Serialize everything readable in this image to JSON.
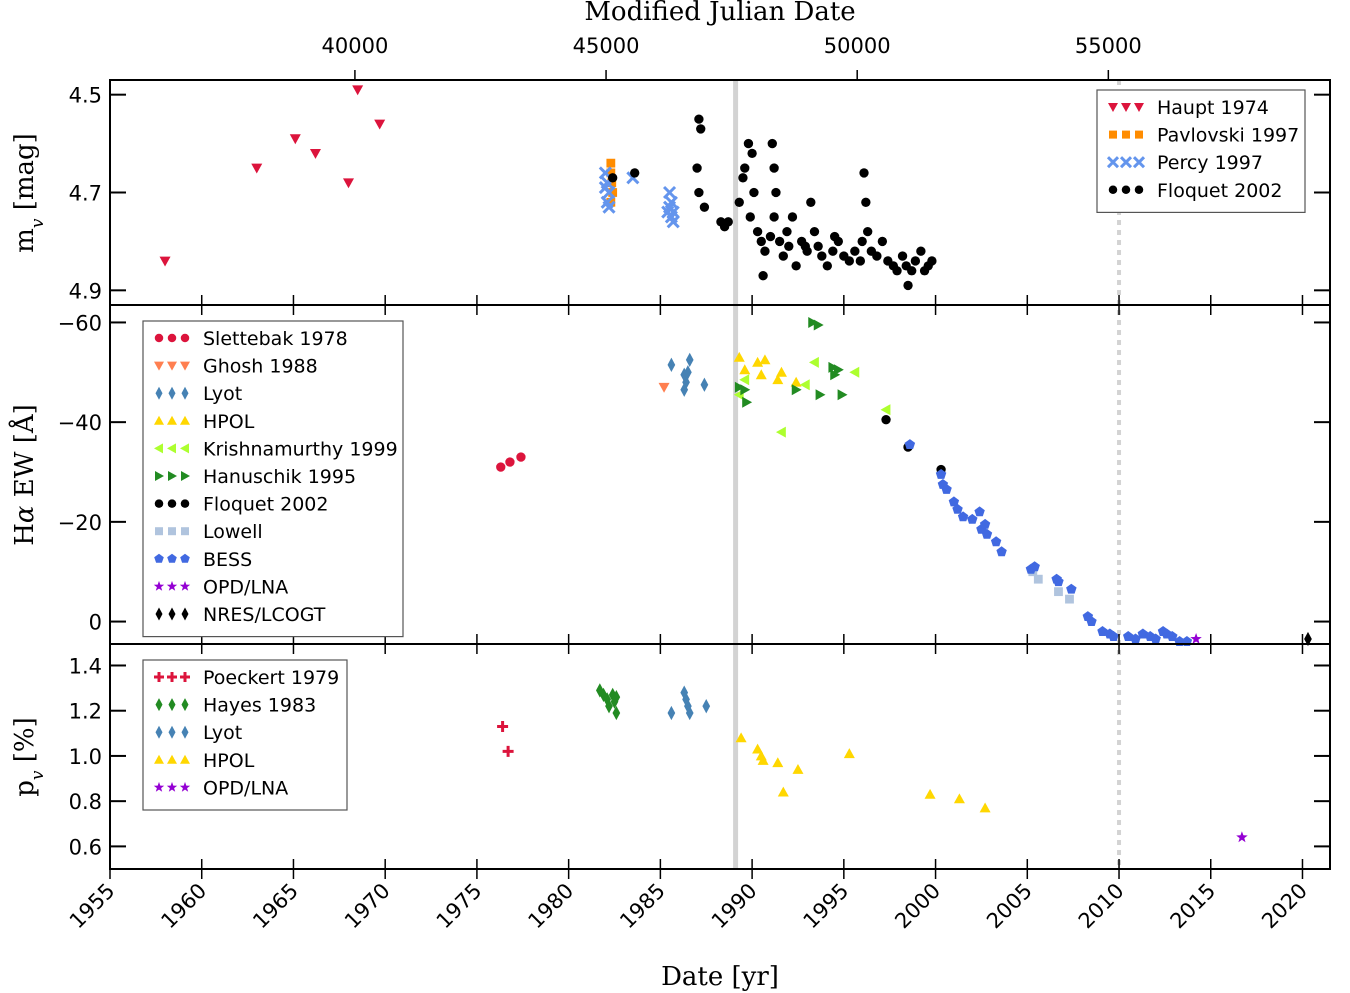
{
  "figure": {
    "top_axis_label": "Modified Julian Date",
    "bottom_axis_label": "Date [yr]"
  },
  "chart_data": [
    {
      "type": "scatter",
      "panel": "magnitude",
      "ylabel": "m_v [mag]",
      "ylim": [
        4.93,
        4.47
      ],
      "yticks": [
        "4.5",
        "4.7",
        "4.9"
      ],
      "ytick_values": [
        4.5,
        4.7,
        4.9
      ],
      "xlim": [
        1955,
        2021.5
      ],
      "legend": "top-right",
      "series": [
        {
          "name": "Haupt 1974",
          "marker": "tri-down",
          "color": "#dc143c",
          "points": [
            [
              1958.0,
              4.84
            ],
            [
              1963.0,
              4.65
            ],
            [
              1965.1,
              4.59
            ],
            [
              1966.2,
              4.62
            ],
            [
              1968.0,
              4.68
            ],
            [
              1968.5,
              4.49
            ],
            [
              1969.7,
              4.56
            ]
          ]
        },
        {
          "name": "Pavlovski 1997",
          "marker": "square",
          "color": "#ff8c00",
          "points": [
            [
              1982.3,
              4.64
            ],
            [
              1982.3,
              4.66
            ],
            [
              1982.35,
              4.68
            ],
            [
              1982.4,
              4.7
            ],
            [
              1982.3,
              4.72
            ]
          ]
        },
        {
          "name": "Percy 1997",
          "marker": "x",
          "color": "#6495ed",
          "points": [
            [
              1982.0,
              4.66
            ],
            [
              1982.1,
              4.68
            ],
            [
              1982.2,
              4.7
            ],
            [
              1982.1,
              4.72
            ],
            [
              1982.2,
              4.73
            ],
            [
              1982.0,
              4.69
            ],
            [
              1983.5,
              4.67
            ],
            [
              1985.5,
              4.7
            ],
            [
              1985.5,
              4.73
            ],
            [
              1985.6,
              4.75
            ],
            [
              1985.7,
              4.76
            ],
            [
              1985.4,
              4.74
            ],
            [
              1985.6,
              4.72
            ],
            [
              1985.7,
              4.74
            ]
          ]
        },
        {
          "name": "Floquet 2002",
          "marker": "circle",
          "color": "#000000",
          "points": [
            [
              1982.4,
              4.67
            ],
            [
              1983.6,
              4.66
            ],
            [
              1987.1,
              4.55
            ],
            [
              1987.2,
              4.57
            ],
            [
              1987.0,
              4.65
            ],
            [
              1987.1,
              4.7
            ],
            [
              1987.4,
              4.73
            ],
            [
              1988.3,
              4.76
            ],
            [
              1988.5,
              4.77
            ],
            [
              1988.7,
              4.76
            ],
            [
              1989.3,
              4.72
            ],
            [
              1989.5,
              4.67
            ],
            [
              1989.6,
              4.65
            ],
            [
              1989.8,
              4.6
            ],
            [
              1990.0,
              4.62
            ],
            [
              1989.9,
              4.75
            ],
            [
              1990.1,
              4.7
            ],
            [
              1990.3,
              4.78
            ],
            [
              1990.5,
              4.8
            ],
            [
              1990.7,
              4.82
            ],
            [
              1990.6,
              4.87
            ],
            [
              1991.0,
              4.79
            ],
            [
              1991.1,
              4.6
            ],
            [
              1991.2,
              4.65
            ],
            [
              1991.3,
              4.7
            ],
            [
              1991.2,
              4.75
            ],
            [
              1991.5,
              4.8
            ],
            [
              1991.7,
              4.83
            ],
            [
              1992.0,
              4.81
            ],
            [
              1992.2,
              4.75
            ],
            [
              1992.4,
              4.85
            ],
            [
              1992.7,
              4.8
            ],
            [
              1993.0,
              4.82
            ],
            [
              1993.2,
              4.72
            ],
            [
              1993.4,
              4.78
            ],
            [
              1993.6,
              4.81
            ],
            [
              1993.8,
              4.83
            ],
            [
              1994.1,
              4.85
            ],
            [
              1994.4,
              4.82
            ],
            [
              1994.7,
              4.8
            ],
            [
              1995.0,
              4.83
            ],
            [
              1995.3,
              4.84
            ],
            [
              1995.6,
              4.82
            ],
            [
              1995.9,
              4.84
            ],
            [
              1996.1,
              4.66
            ],
            [
              1996.2,
              4.72
            ],
            [
              1996.3,
              4.78
            ],
            [
              1996.5,
              4.82
            ],
            [
              1996.8,
              4.83
            ],
            [
              1997.1,
              4.8
            ],
            [
              1997.4,
              4.84
            ],
            [
              1997.7,
              4.85
            ],
            [
              1997.9,
              4.86
            ],
            [
              1998.2,
              4.83
            ],
            [
              1998.4,
              4.85
            ],
            [
              1998.5,
              4.89
            ],
            [
              1998.7,
              4.86
            ],
            [
              1998.9,
              4.84
            ],
            [
              1999.2,
              4.82
            ],
            [
              1999.4,
              4.86
            ],
            [
              1999.6,
              4.85
            ],
            [
              1999.8,
              4.84
            ],
            [
              1996.0,
              4.8
            ],
            [
              1994.5,
              4.79
            ],
            [
              1992.9,
              4.81
            ],
            [
              1991.9,
              4.78
            ]
          ]
        }
      ]
    },
    {
      "type": "scatter",
      "panel": "halpha",
      "ylabel": "Hα EW [Å]",
      "ylim": [
        4.5,
        -63.5
      ],
      "yticks": [
        "−60",
        "−40",
        "−20",
        "0"
      ],
      "ytick_values": [
        -60,
        -40,
        -20,
        0
      ],
      "xlim": [
        1955,
        2021.5
      ],
      "legend": "top-left",
      "series": [
        {
          "name": "Slettebak 1978",
          "marker": "circle",
          "color": "#dc143c",
          "points": [
            [
              1976.3,
              -31.0
            ],
            [
              1976.8,
              -32.0
            ],
            [
              1977.4,
              -33.0
            ]
          ]
        },
        {
          "name": "Ghosh 1988",
          "marker": "tri-down",
          "color": "#ff7f50",
          "points": [
            [
              1985.2,
              -47.0
            ]
          ]
        },
        {
          "name": "Lyot",
          "marker": "diamond",
          "color": "#4682b4",
          "points": [
            [
              1985.6,
              -51.5
            ],
            [
              1986.3,
              -46.5
            ],
            [
              1986.4,
              -48.0
            ],
            [
              1986.5,
              -50.0
            ],
            [
              1986.6,
              -52.5
            ],
            [
              1986.3,
              -49.5
            ],
            [
              1987.4,
              -47.5
            ]
          ]
        },
        {
          "name": "HPOL",
          "marker": "triangle",
          "color": "#ffd700",
          "points": [
            [
              1989.3,
              -53.0
            ],
            [
              1989.6,
              -50.5
            ],
            [
              1990.3,
              -52.0
            ],
            [
              1990.5,
              -49.5
            ],
            [
              1990.7,
              -52.5
            ],
            [
              1991.4,
              -48.5
            ],
            [
              1991.6,
              -50.0
            ],
            [
              1992.4,
              -48.0
            ]
          ]
        },
        {
          "name": "Krishnamurthy 1999",
          "marker": "tri-left",
          "color": "#adff2f",
          "points": [
            [
              1989.3,
              -45.5
            ],
            [
              1989.6,
              -48.5
            ],
            [
              1991.6,
              -38.0
            ],
            [
              1992.9,
              -47.5
            ],
            [
              1993.4,
              -52.0
            ],
            [
              1995.6,
              -50.0
            ],
            [
              1997.3,
              -42.5
            ]
          ]
        },
        {
          "name": "Hanuschik 1995",
          "marker": "tri-right",
          "color": "#228b22",
          "points": [
            [
              1989.3,
              -47.0
            ],
            [
              1989.6,
              -46.5
            ],
            [
              1989.7,
              -44.0
            ],
            [
              1992.4,
              -46.5
            ],
            [
              1993.3,
              -60.0
            ],
            [
              1993.6,
              -59.5
            ],
            [
              1993.7,
              -45.5
            ],
            [
              1994.4,
              -51.0
            ],
            [
              1994.5,
              -49.5
            ],
            [
              1994.7,
              -50.5
            ],
            [
              1994.9,
              -45.5
            ]
          ]
        },
        {
          "name": "Floquet 2002",
          "marker": "circle",
          "color": "#000000",
          "points": [
            [
              1997.3,
              -40.5
            ],
            [
              1998.5,
              -35.0
            ],
            [
              2000.3,
              -30.5
            ]
          ]
        },
        {
          "name": "Lowell",
          "marker": "square",
          "color": "#b0c4de",
          "points": [
            [
              2005.3,
              -10.0
            ],
            [
              2005.6,
              -8.5
            ],
            [
              2006.7,
              -6.0
            ],
            [
              2007.3,
              -4.5
            ]
          ]
        },
        {
          "name": "BESS",
          "marker": "pentagon",
          "color": "#4169e1",
          "points": [
            [
              1998.6,
              -35.5
            ],
            [
              2000.3,
              -29.5
            ],
            [
              2000.4,
              -27.5
            ],
            [
              2000.6,
              -26.5
            ],
            [
              2001.0,
              -24.0
            ],
            [
              2001.2,
              -22.5
            ],
            [
              2001.5,
              -21.0
            ],
            [
              2002.0,
              -20.5
            ],
            [
              2002.4,
              -22.0
            ],
            [
              2002.5,
              -18.5
            ],
            [
              2002.7,
              -19.5
            ],
            [
              2002.8,
              -17.5
            ],
            [
              2003.3,
              -16.0
            ],
            [
              2003.6,
              -14.0
            ],
            [
              2005.2,
              -10.5
            ],
            [
              2005.4,
              -11.0
            ],
            [
              2006.6,
              -8.5
            ],
            [
              2006.7,
              -8.0
            ],
            [
              2007.4,
              -6.5
            ],
            [
              2008.3,
              -1.0
            ],
            [
              2008.5,
              0.0
            ],
            [
              2009.1,
              2.0
            ],
            [
              2009.5,
              2.5
            ],
            [
              2009.7,
              3.0
            ],
            [
              2010.5,
              3.0
            ],
            [
              2010.9,
              3.5
            ],
            [
              2011.3,
              2.5
            ],
            [
              2011.7,
              3.0
            ],
            [
              2012.0,
              3.5
            ],
            [
              2012.4,
              2.0
            ],
            [
              2012.6,
              2.5
            ],
            [
              2012.9,
              3.0
            ],
            [
              2013.3,
              4.0
            ],
            [
              2013.7,
              4.0
            ]
          ]
        },
        {
          "name": "OPD/LNA",
          "marker": "star",
          "color": "#9400d3",
          "points": [
            [
              2014.2,
              3.5
            ]
          ]
        },
        {
          "name": "NRES/LCOGT",
          "marker": "diamond",
          "color": "#000000",
          "points": [
            [
              2020.3,
              3.5
            ]
          ]
        }
      ]
    },
    {
      "type": "scatter",
      "panel": "polarization",
      "ylabel": "p_v [%]",
      "ylim": [
        0.5,
        1.495
      ],
      "yticks": [
        "0.6",
        "0.8",
        "1.0",
        "1.2",
        "1.4"
      ],
      "ytick_values": [
        0.6,
        0.8,
        1.0,
        1.2,
        1.4
      ],
      "xlim": [
        1955,
        2021.5
      ],
      "legend": "top-left",
      "series": [
        {
          "name": "Poeckert 1979",
          "marker": "plus",
          "color": "#dc143c",
          "points": [
            [
              1976.4,
              1.13
            ],
            [
              1976.7,
              1.02
            ]
          ]
        },
        {
          "name": "Hayes 1983",
          "marker": "diamond",
          "color": "#228b22",
          "points": [
            [
              1981.7,
              1.29
            ],
            [
              1981.9,
              1.27
            ],
            [
              1982.1,
              1.25
            ],
            [
              1982.2,
              1.22
            ],
            [
              1982.4,
              1.27
            ],
            [
              1982.5,
              1.24
            ],
            [
              1982.6,
              1.26
            ],
            [
              1982.6,
              1.19
            ]
          ]
        },
        {
          "name": "Lyot",
          "marker": "diamond",
          "color": "#4682b4",
          "points": [
            [
              1985.6,
              1.19
            ],
            [
              1986.3,
              1.28
            ],
            [
              1986.4,
              1.25
            ],
            [
              1986.5,
              1.22
            ],
            [
              1986.6,
              1.19
            ],
            [
              1987.5,
              1.22
            ]
          ]
        },
        {
          "name": "HPOL",
          "marker": "triangle",
          "color": "#ffd700",
          "points": [
            [
              1989.4,
              1.08
            ],
            [
              1990.3,
              1.03
            ],
            [
              1990.5,
              1.0
            ],
            [
              1990.6,
              0.98
            ],
            [
              1991.4,
              0.97
            ],
            [
              1991.7,
              0.84
            ],
            [
              1992.5,
              0.94
            ],
            [
              1995.3,
              1.01
            ],
            [
              1999.7,
              0.83
            ],
            [
              2001.3,
              0.81
            ],
            [
              2002.7,
              0.77
            ]
          ]
        },
        {
          "name": "OPD/LNA",
          "marker": "star",
          "color": "#9400d3",
          "points": [
            [
              2016.7,
              0.64
            ]
          ]
        }
      ]
    }
  ],
  "x_axis": {
    "year_ticks": [
      "1955",
      "1960",
      "1965",
      "1970",
      "1975",
      "1980",
      "1985",
      "1990",
      "1995",
      "2000",
      "2005",
      "2010",
      "2015",
      "2020"
    ],
    "year_tick_values": [
      1955,
      1960,
      1965,
      1970,
      1975,
      1980,
      1985,
      1990,
      1995,
      2000,
      2005,
      2010,
      2015,
      2020
    ],
    "mjd_ticks": [
      "40000",
      "45000",
      "50000",
      "55000"
    ],
    "mjd_tick_values": [
      40000,
      45000,
      50000,
      55000
    ],
    "reference_lines": [
      {
        "year": 1989.1,
        "style": "solid",
        "color": "#d3d3d3"
      },
      {
        "year": 2010.0,
        "style": "dotted",
        "color": "#d3d3d3"
      }
    ]
  }
}
